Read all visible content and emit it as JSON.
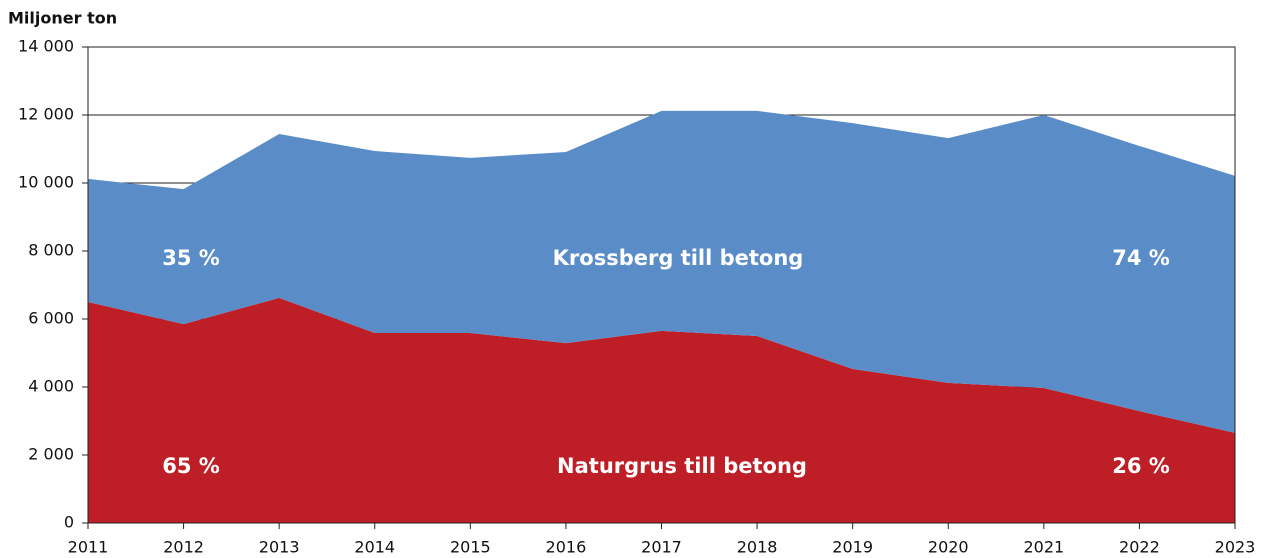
{
  "chart_data": {
    "type": "stacked-area",
    "y_label": "Miljoner ton",
    "categories": [
      "2011",
      "2012",
      "2013",
      "2014",
      "2015",
      "2016",
      "2017",
      "2018",
      "2019",
      "2020",
      "2021",
      "2022",
      "2023"
    ],
    "series": [
      {
        "name": "Naturgrus till betong",
        "color": "#be1e26",
        "values": [
          6500,
          5850,
          6620,
          5590,
          5590,
          5290,
          5650,
          5500,
          4530,
          4120,
          3970,
          3290,
          2650
        ]
      },
      {
        "name": "Krossberg till betong",
        "color": "#5a8dc8",
        "values": [
          3620,
          3970,
          4820,
          5350,
          5150,
          5620,
          6470,
          6620,
          7230,
          7200,
          8030,
          7800,
          7560
        ]
      }
    ],
    "annotations": [
      "35 %",
      "65 %",
      "74 %",
      "26 %"
    ],
    "ylim": [
      0,
      14000
    ],
    "yticks": [
      0,
      {
        "value": 2000,
        "label": "2 000"
      },
      {
        "value": 4000,
        "label": "4 000"
      },
      {
        "value": 6000,
        "label": "6 000"
      },
      {
        "value": 8000,
        "label": "8 000"
      },
      {
        "value": 10000,
        "label": "10 000"
      },
      {
        "value": 12000,
        "label": "12 000"
      },
      {
        "value": 14000,
        "label": "14 000"
      }
    ],
    "grid": true
  }
}
